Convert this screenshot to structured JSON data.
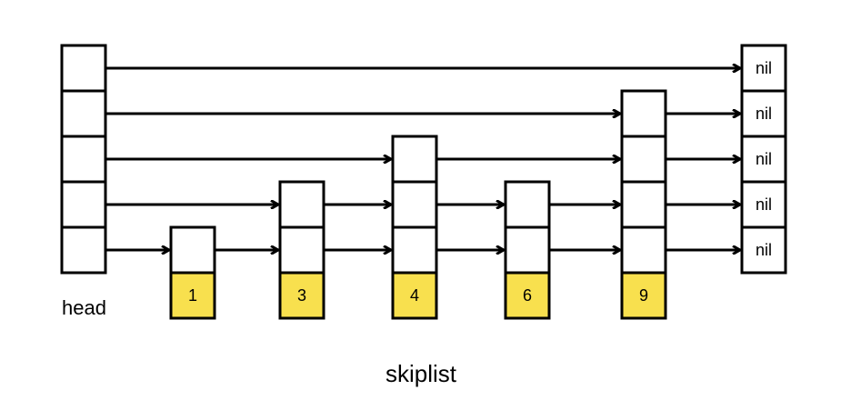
{
  "labels": {
    "head": "head",
    "caption": "skiplist",
    "nil": "nil"
  },
  "colors": {
    "key_fill": "#f8e04e",
    "line": "#000000",
    "cell_fill": "#ffffff"
  },
  "skiplist": {
    "max_level": 5,
    "nodes": [
      {
        "key": "1",
        "height": 1
      },
      {
        "key": "3",
        "height": 2
      },
      {
        "key": "4",
        "height": 3
      },
      {
        "key": "6",
        "height": 2
      },
      {
        "key": "9",
        "height": 4
      }
    ]
  }
}
